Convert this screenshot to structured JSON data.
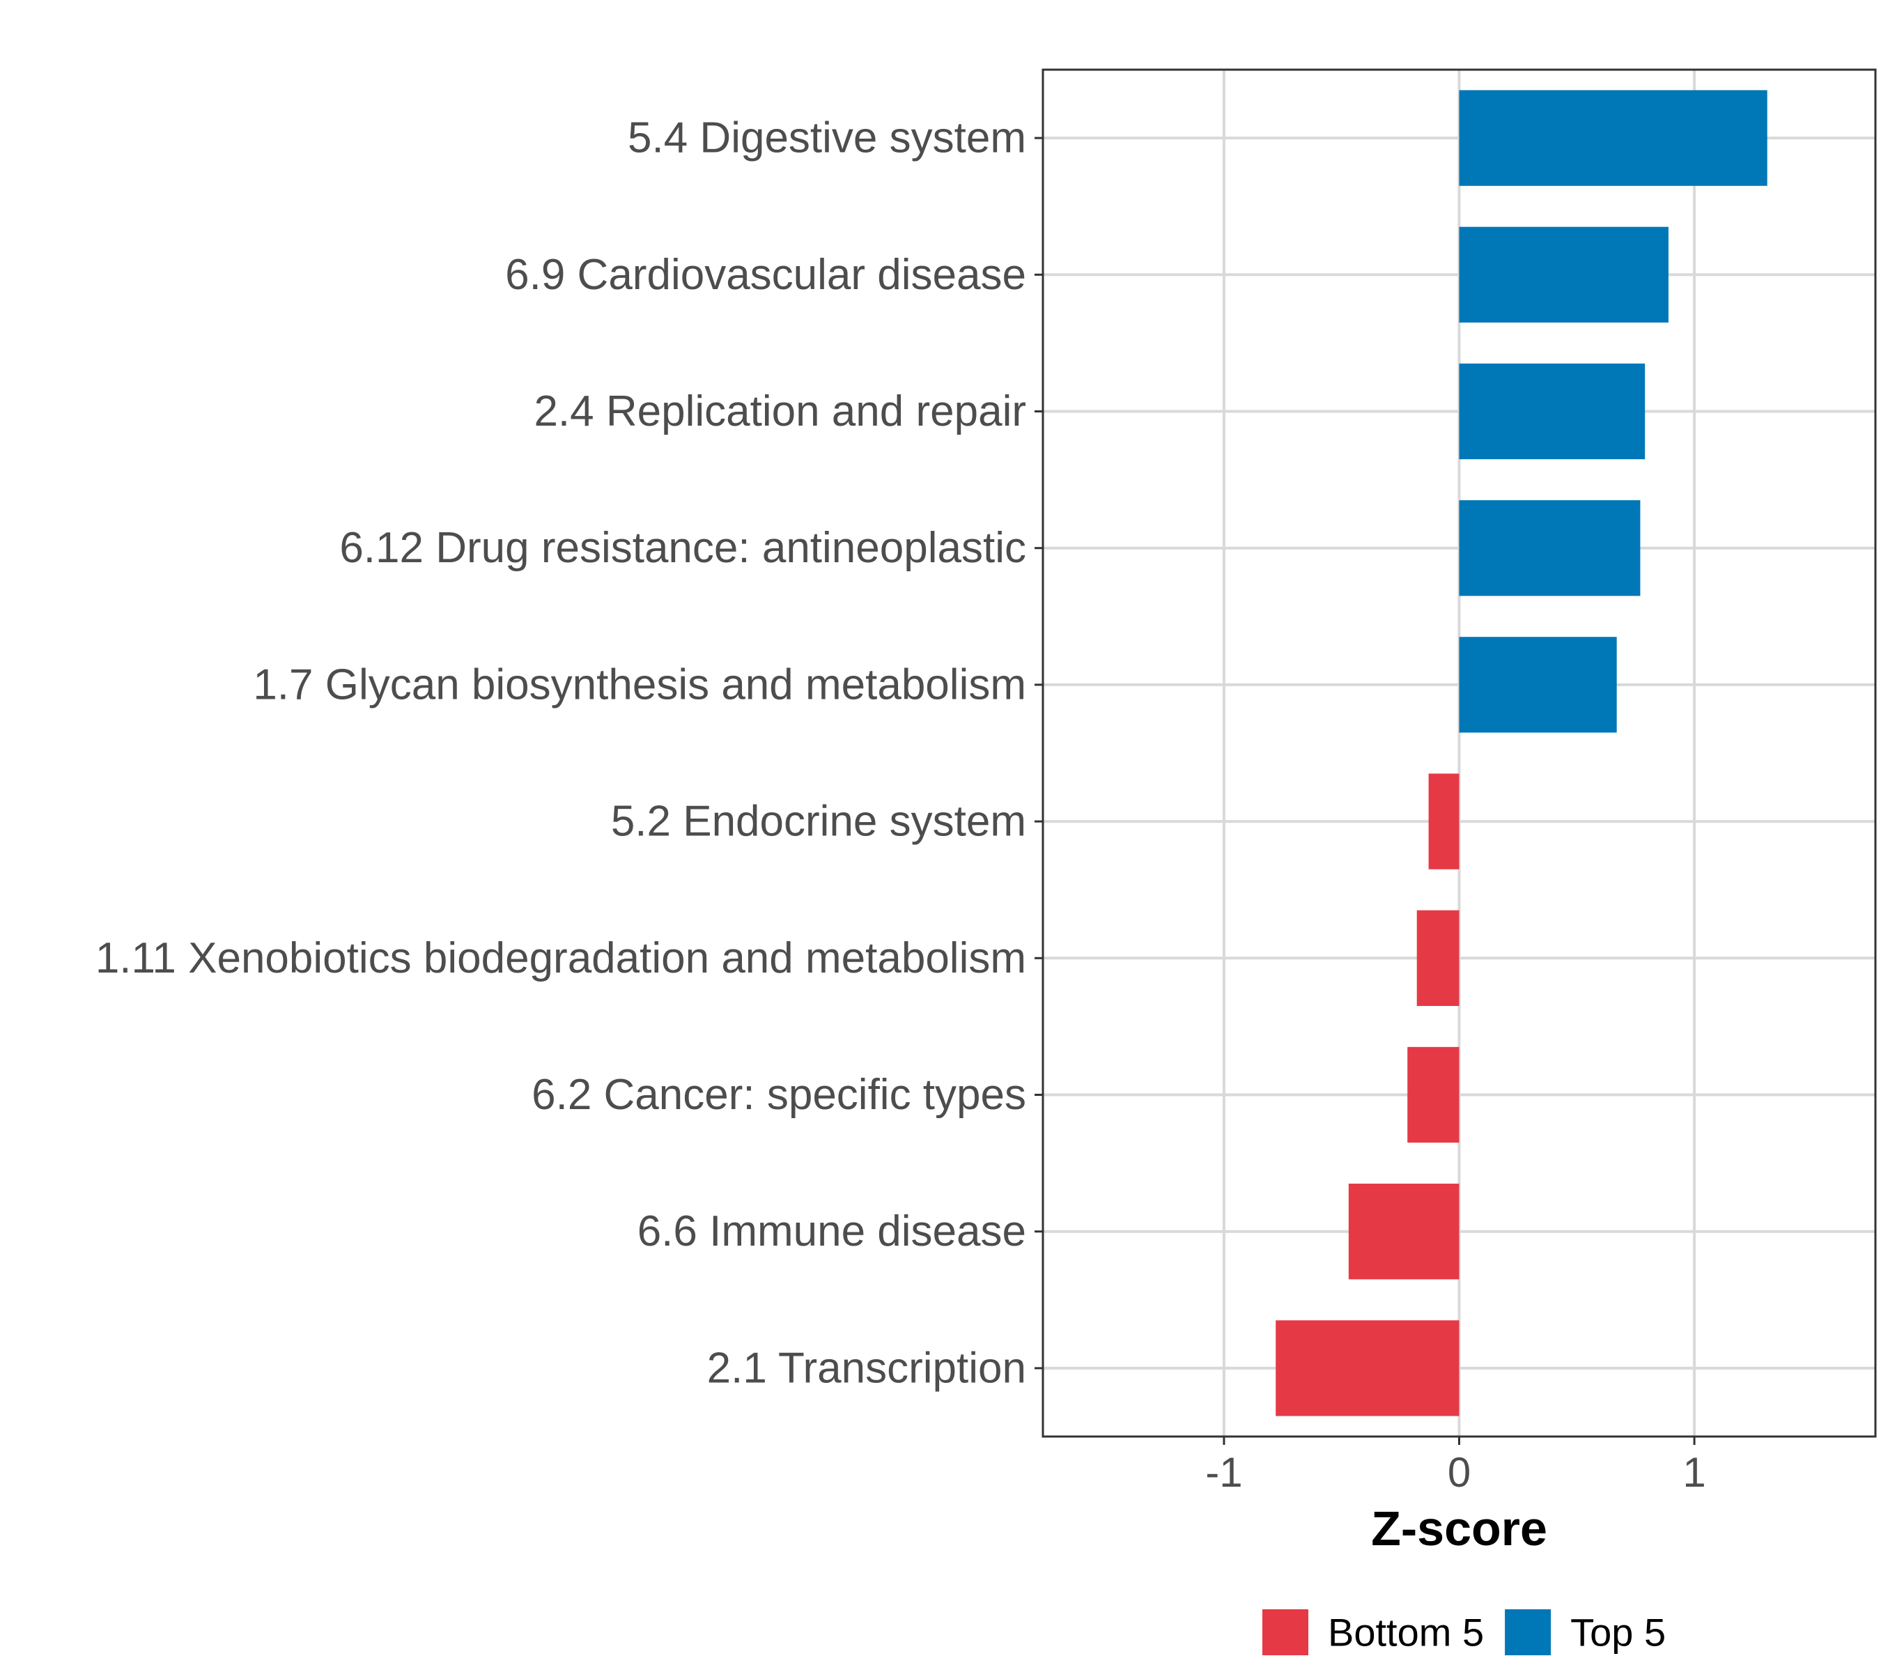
{
  "chart_data": {
    "type": "bar",
    "orientation": "horizontal",
    "title": "",
    "xlabel": "Z-score",
    "ylabel": "",
    "xlim": [
      -1.77,
      1.77
    ],
    "xticks": [
      -1,
      0,
      1
    ],
    "xtick_labels": [
      "-1",
      "0",
      "1"
    ],
    "grid": true,
    "legend_position": "bottom",
    "categories": [
      "5.4 Digestive system",
      "6.9 Cardiovascular disease",
      "2.4 Replication and repair",
      "6.12 Drug resistance: antineoplastic",
      "1.7 Glycan biosynthesis and metabolism",
      "5.2 Endocrine system",
      "1.11 Xenobiotics biodegradation and metabolism",
      "6.2 Cancer: specific types",
      "6.6 Immune disease",
      "2.1 Transcription"
    ],
    "values": [
      1.31,
      0.89,
      0.79,
      0.77,
      0.67,
      -0.13,
      -0.18,
      -0.22,
      -0.47,
      -0.78
    ],
    "groups": [
      "Top 5",
      "Top 5",
      "Top 5",
      "Top 5",
      "Top 5",
      "Bottom 5",
      "Bottom 5",
      "Bottom 5",
      "Bottom 5",
      "Bottom 5"
    ],
    "legend": [
      {
        "name": "Bottom 5",
        "color": "#e63946"
      },
      {
        "name": "Top 5",
        "color": "#0077b6"
      }
    ]
  }
}
